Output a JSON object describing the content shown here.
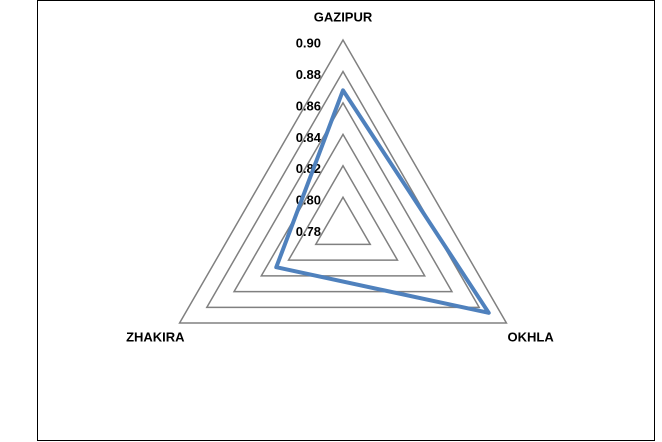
{
  "chart_data": {
    "type": "radar",
    "categories": [
      "GAZIPUR",
      "OKHLA",
      "ZHAKIRA"
    ],
    "series": [
      {
        "color": "#4f81bd",
        "values": [
          0.868,
          0.887,
          0.829
        ]
      }
    ],
    "ylim": [
      0.78,
      0.9
    ],
    "yticks": [
      0.78,
      {
        "value": 0.8,
        "label": "0.80"
      },
      0.82,
      0.84,
      0.86,
      0.88,
      {
        "value": 0.9,
        "label": "0.90"
      }
    ],
    "grid": true,
    "grid_color": "#808080"
  }
}
